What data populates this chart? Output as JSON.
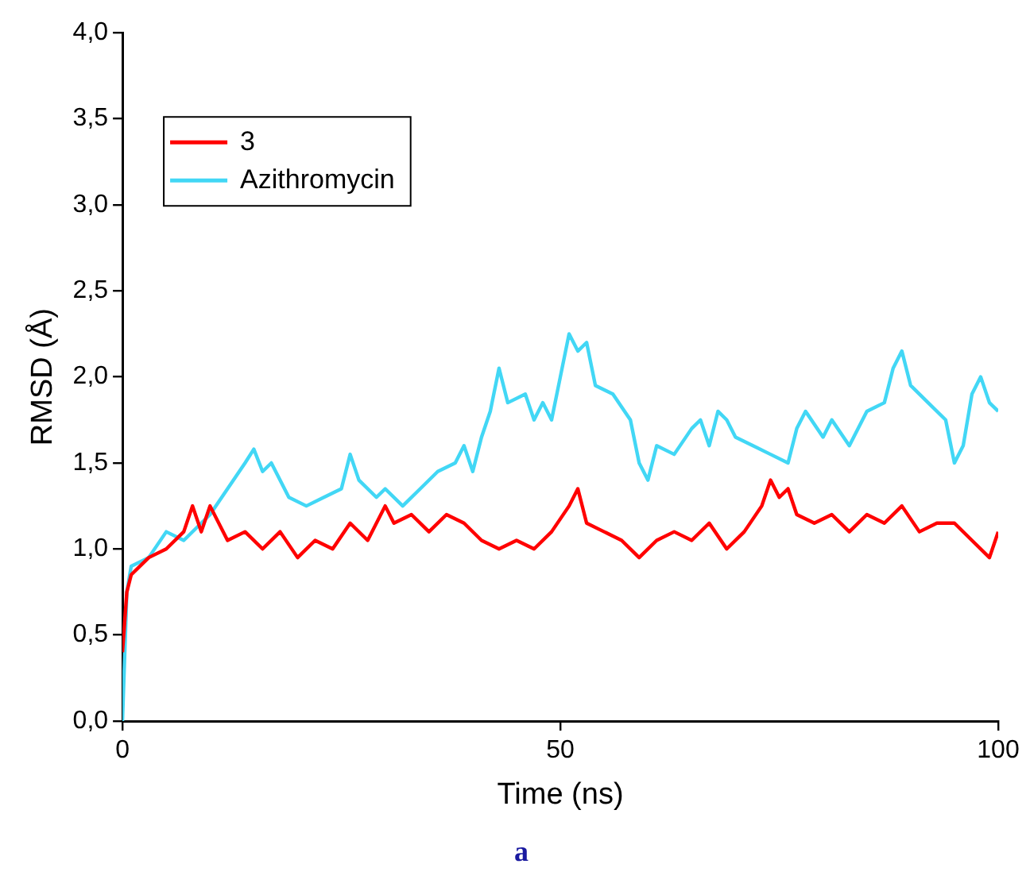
{
  "chart_data": {
    "type": "line",
    "xlabel": "Time (ns)",
    "ylabel": "RMSD (Å)",
    "xlim": [
      0,
      100
    ],
    "xticks": [
      0,
      50,
      100
    ],
    "ylim": [
      0,
      4
    ],
    "yticks": [
      {
        "value": 0,
        "label": "0,0"
      },
      {
        "value": 0.5,
        "label": "0,5"
      },
      {
        "value": 1,
        "label": "1,0"
      },
      {
        "value": 1.5,
        "label": "1,5"
      },
      {
        "value": 2,
        "label": "2,0"
      },
      {
        "value": 2.5,
        "label": "2,5"
      },
      {
        "value": 3,
        "label": "3,0"
      },
      {
        "value": 3.5,
        "label": "3,5"
      },
      {
        "value": 4,
        "label": "4,0"
      }
    ],
    "grid": false,
    "legend": "top left",
    "marker": "none",
    "line_style": "solid",
    "annotations": [
      "a"
    ],
    "series": [
      {
        "name": "3",
        "color": "#ff0000",
        "x": [
          0,
          0.5,
          1,
          3,
          5,
          7,
          8,
          9,
          10,
          12,
          14,
          16,
          18,
          20,
          22,
          24,
          26,
          28,
          30,
          31,
          33,
          35,
          37,
          39,
          41,
          43,
          45,
          47,
          49,
          51,
          52,
          53,
          55,
          57,
          59,
          61,
          63,
          65,
          67,
          69,
          71,
          73,
          74,
          75,
          76,
          77,
          79,
          81,
          83,
          85,
          87,
          89,
          91,
          93,
          95,
          97,
          99,
          100
        ],
        "values": [
          0.4,
          0.75,
          0.85,
          0.95,
          1.0,
          1.1,
          1.25,
          1.1,
          1.25,
          1.05,
          1.1,
          1.0,
          1.1,
          0.95,
          1.05,
          1.0,
          1.15,
          1.05,
          1.25,
          1.15,
          1.2,
          1.1,
          1.2,
          1.15,
          1.05,
          1.0,
          1.05,
          1.0,
          1.1,
          1.25,
          1.35,
          1.15,
          1.1,
          1.05,
          0.95,
          1.05,
          1.1,
          1.05,
          1.15,
          1.0,
          1.1,
          1.25,
          1.4,
          1.3,
          1.35,
          1.2,
          1.15,
          1.2,
          1.1,
          1.2,
          1.15,
          1.25,
          1.1,
          1.15,
          1.15,
          1.05,
          0.95,
          1.1
        ]
      },
      {
        "name": "Azithromycin",
        "color": "#42d7f5",
        "x": [
          0,
          0.5,
          1,
          3,
          5,
          7,
          9,
          10,
          12,
          14,
          15,
          16,
          17,
          19,
          21,
          23,
          25,
          26,
          27,
          29,
          30,
          32,
          34,
          36,
          38,
          39,
          40,
          41,
          42,
          43,
          44,
          46,
          47,
          48,
          49,
          50,
          51,
          52,
          53,
          54,
          56,
          58,
          59,
          60,
          61,
          63,
          65,
          66,
          67,
          68,
          69,
          70,
          72,
          74,
          76,
          77,
          78,
          80,
          81,
          83,
          85,
          87,
          88,
          89,
          90,
          92,
          94,
          95,
          96,
          97,
          98,
          99,
          100
        ],
        "values": [
          0.0,
          0.75,
          0.9,
          0.95,
          1.1,
          1.05,
          1.15,
          1.2,
          1.35,
          1.5,
          1.58,
          1.45,
          1.5,
          1.3,
          1.25,
          1.3,
          1.35,
          1.55,
          1.4,
          1.3,
          1.35,
          1.25,
          1.35,
          1.45,
          1.5,
          1.6,
          1.45,
          1.65,
          1.8,
          2.05,
          1.85,
          1.9,
          1.75,
          1.85,
          1.75,
          2.0,
          2.25,
          2.15,
          2.2,
          1.95,
          1.9,
          1.75,
          1.5,
          1.4,
          1.6,
          1.55,
          1.7,
          1.75,
          1.6,
          1.8,
          1.75,
          1.65,
          1.6,
          1.55,
          1.5,
          1.7,
          1.8,
          1.65,
          1.75,
          1.6,
          1.8,
          1.85,
          2.05,
          2.15,
          1.95,
          1.85,
          1.75,
          1.5,
          1.6,
          1.9,
          2.0,
          1.85,
          1.8
        ]
      }
    ]
  }
}
